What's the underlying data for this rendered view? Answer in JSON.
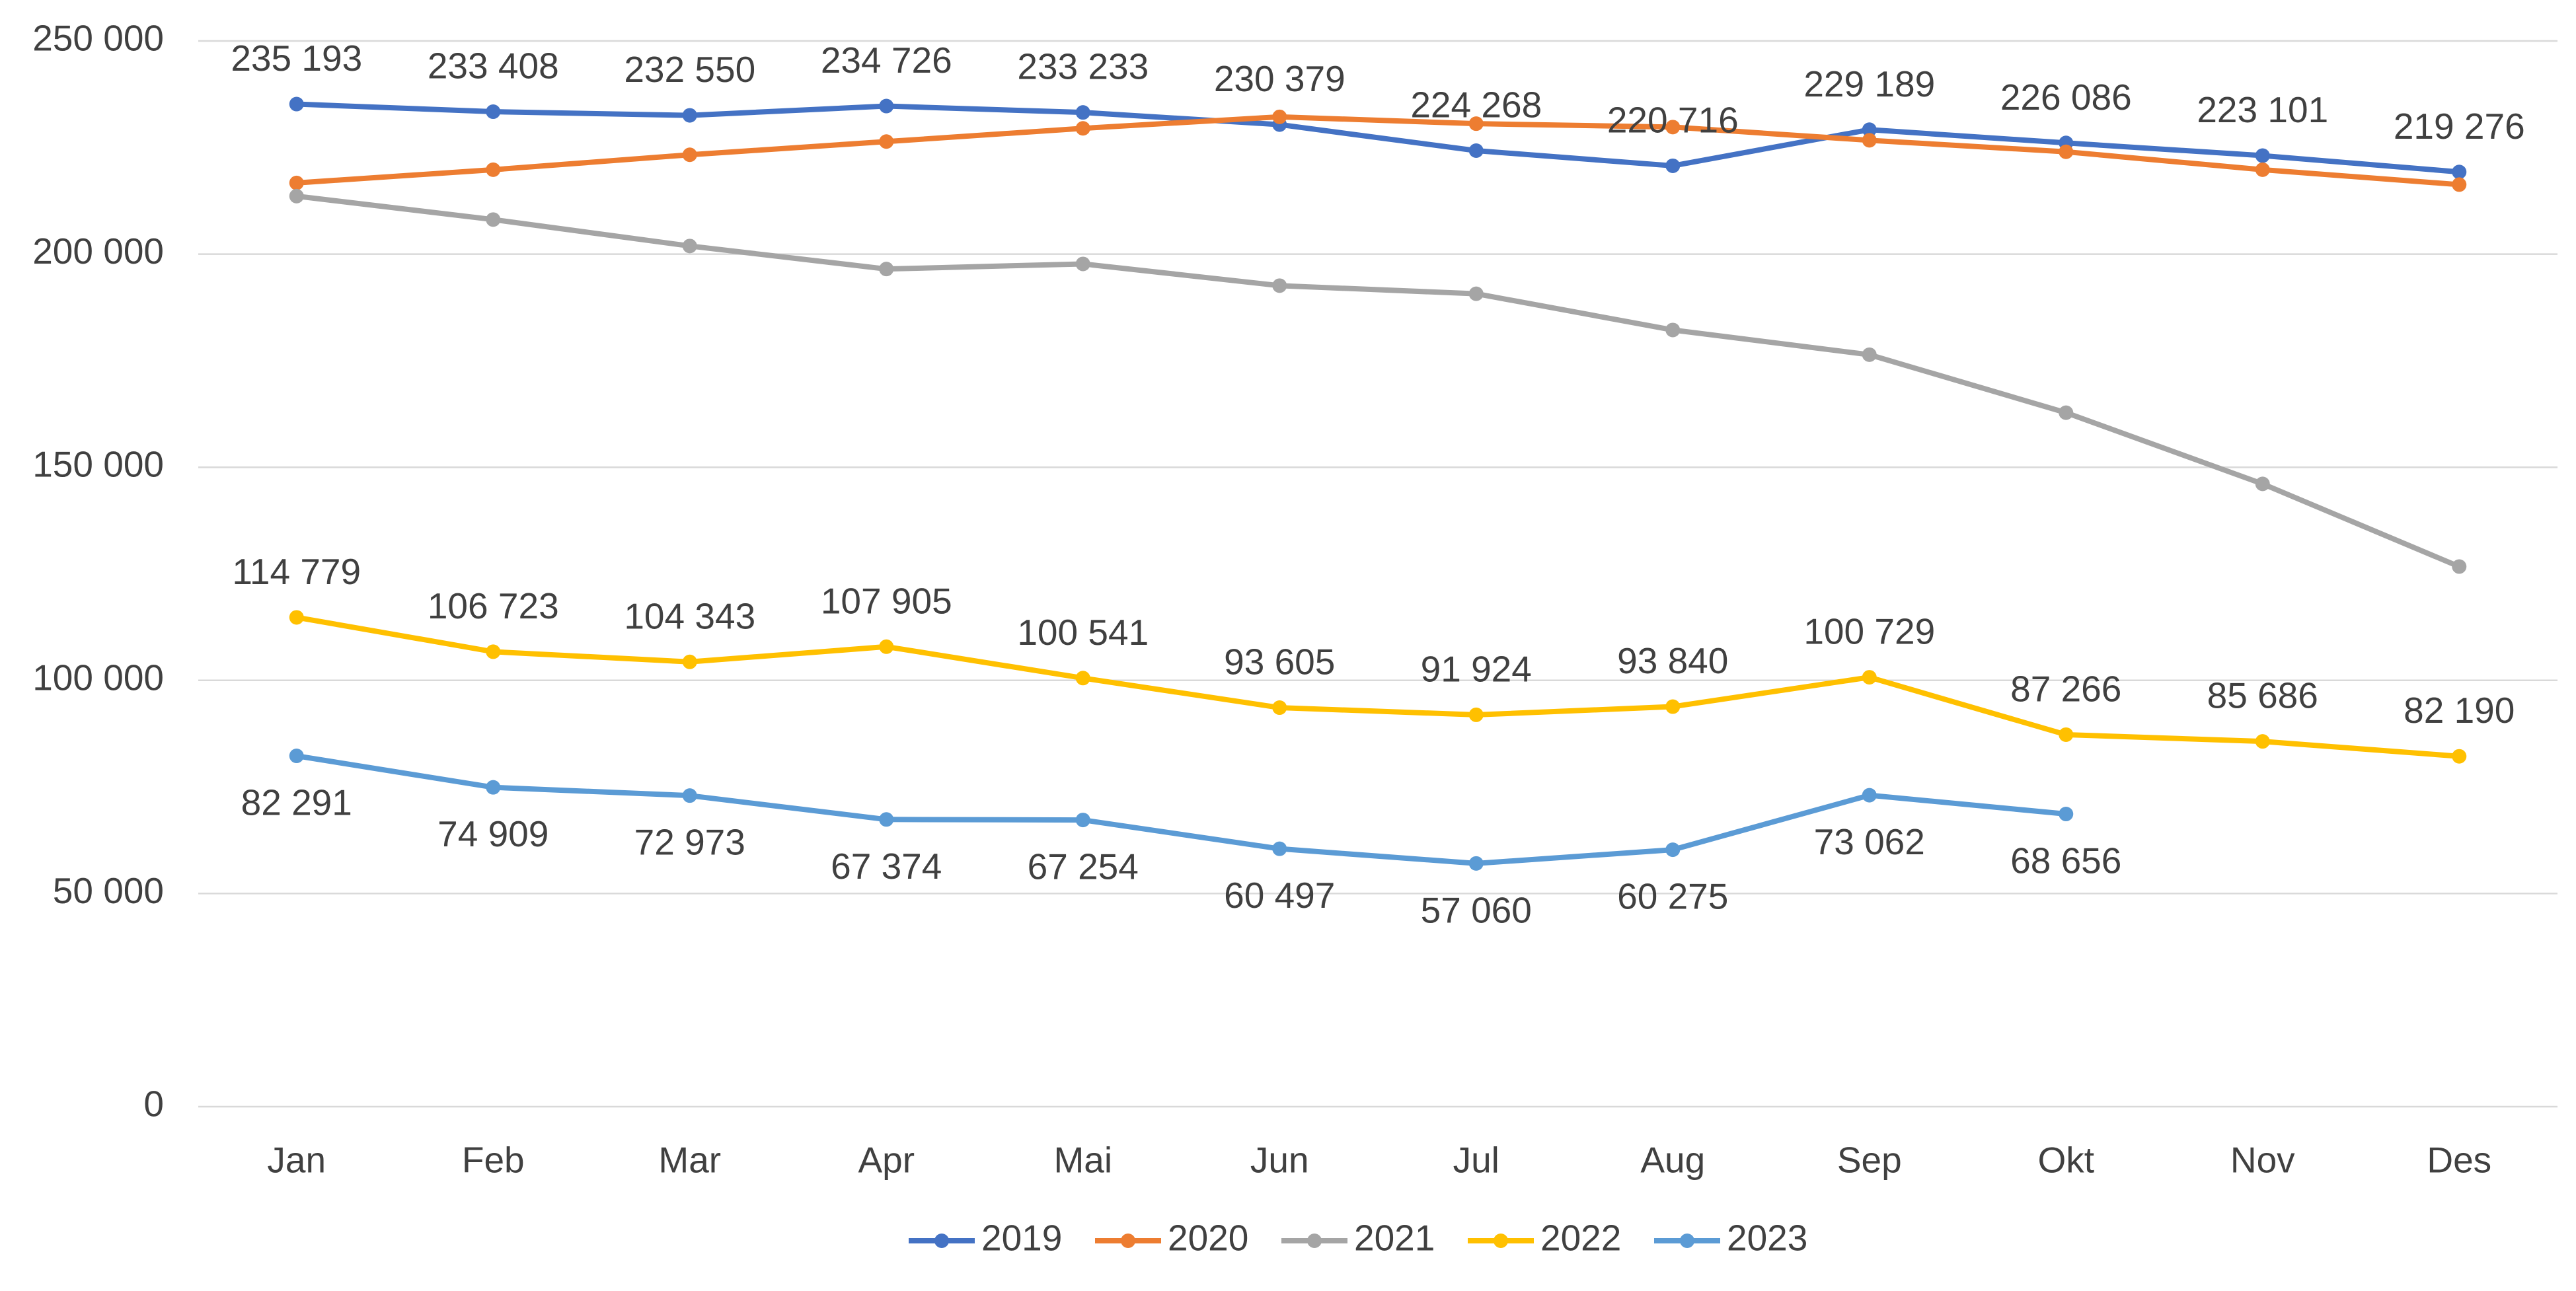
{
  "chart_data": {
    "type": "line",
    "categories": [
      "Jan",
      "Feb",
      "Mar",
      "Apr",
      "Mai",
      "Jun",
      "Jul",
      "Aug",
      "Sep",
      "Okt",
      "Nov",
      "Des"
    ],
    "series": [
      {
        "name": "2019",
        "color": "#4472c4",
        "values": [
          235193,
          233408,
          232550,
          234726,
          233233,
          230379,
          224268,
          220716,
          229189,
          226086,
          223101,
          219276
        ],
        "value_labels": [
          "235 193",
          "233 408",
          "232 550",
          "234 726",
          "233 233",
          "230 379",
          "224 268",
          "220 716",
          "229 189",
          "226 086",
          "223 101",
          "219 276"
        ]
      },
      {
        "name": "2020",
        "color": "#ed7d31",
        "values": [
          216700,
          219800,
          223300,
          226400,
          229500,
          232200,
          230600,
          229800,
          226700,
          224000,
          219800,
          216300
        ]
      },
      {
        "name": "2021",
        "color": "#a5a5a5",
        "values": [
          213600,
          208100,
          201900,
          196500,
          197700,
          192600,
          190700,
          182200,
          176400,
          162800,
          146100,
          126700
        ]
      },
      {
        "name": "2022",
        "color": "#ffc000",
        "values": [
          114779,
          106723,
          104343,
          107905,
          100541,
          93605,
          91924,
          93840,
          100729,
          87266,
          85686,
          82190
        ],
        "value_labels": [
          "114 779",
          "106 723",
          "104 343",
          "107 905",
          "100 541",
          "93 605",
          "91 924",
          "93 840",
          "100 729",
          "87 266",
          "85 686",
          "82 190"
        ]
      },
      {
        "name": "2023",
        "color": "#5b9bd5",
        "values": [
          82291,
          74909,
          72973,
          67374,
          67254,
          60497,
          57060,
          60275,
          73062,
          68656,
          null,
          null
        ],
        "value_labels": [
          "82 291",
          "74 909",
          "72 973",
          "67 374",
          "67 254",
          "60 497",
          "57 060",
          "60 275",
          "73 062",
          "68 656",
          null,
          null
        ]
      }
    ],
    "ylim": [
      0,
      250000
    ],
    "yticks": [
      0,
      {
        "value": 50000,
        "label": "50 000"
      },
      {
        "value": 100000,
        "label": "100 000"
      },
      {
        "value": 150000,
        "label": "150 000"
      },
      {
        "value": 200000,
        "label": "200 000"
      },
      {
        "value": 250000,
        "label": "250 000"
      }
    ],
    "grid": true,
    "legend": "bottom"
  }
}
